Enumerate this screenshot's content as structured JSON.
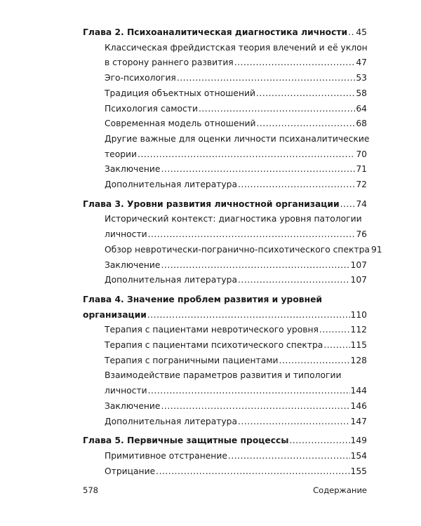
{
  "toc": [
    {
      "type": "chapter",
      "lines": [
        "Глава 2. Психоаналитическая диагностика личности"
      ],
      "page": "45"
    },
    {
      "type": "sub",
      "lines": [
        "Классическая фрейдистская теория влечений и её уклон",
        "в сторону раннего развития"
      ],
      "page": "47"
    },
    {
      "type": "sub",
      "lines": [
        "Эго-психология"
      ],
      "page": "53"
    },
    {
      "type": "sub",
      "lines": [
        "Традиция объектных отношений"
      ],
      "page": "58"
    },
    {
      "type": "sub",
      "lines": [
        "Психология самости"
      ],
      "page": "64"
    },
    {
      "type": "sub",
      "lines": [
        "Современная модель отношений"
      ],
      "page": "68"
    },
    {
      "type": "sub",
      "lines": [
        "Другие важные для оценки личности психаналитические",
        "теории"
      ],
      "page": "70"
    },
    {
      "type": "sub",
      "lines": [
        "Заключение"
      ],
      "page": "71"
    },
    {
      "type": "sub",
      "lines": [
        "Дополнительная литература"
      ],
      "page": "72"
    },
    {
      "type": "chapter",
      "lines": [
        "Глава 3. Уровни развития личностной организации"
      ],
      "page": "74"
    },
    {
      "type": "sub",
      "lines": [
        "Исторический контекст: диагностика уровня патологии",
        "личности"
      ],
      "page": "76"
    },
    {
      "type": "sub",
      "lines": [
        "Обзор невротически-погранично-психотического спектра"
      ],
      "page": "91"
    },
    {
      "type": "sub",
      "lines": [
        "Заключение"
      ],
      "page": "107"
    },
    {
      "type": "sub",
      "lines": [
        "Дополнительная литература"
      ],
      "page": "107"
    },
    {
      "type": "chapter",
      "lines": [
        "Глава 4. Значение проблем развития и уровней",
        "организации"
      ],
      "page": "110"
    },
    {
      "type": "sub",
      "lines": [
        "Терапия с пациентами невротического уровня"
      ],
      "page": "112"
    },
    {
      "type": "sub",
      "lines": [
        "Терапия с пациентами психотического спектра"
      ],
      "page": "115"
    },
    {
      "type": "sub",
      "lines": [
        "Терапия с пограничными пациентами"
      ],
      "page": "128"
    },
    {
      "type": "sub",
      "lines": [
        "Взаимодействие параметров развития и типологии",
        "личности"
      ],
      "page": "144"
    },
    {
      "type": "sub",
      "lines": [
        "Заключение"
      ],
      "page": "146"
    },
    {
      "type": "sub",
      "lines": [
        "Дополнительная литература"
      ],
      "page": "147"
    },
    {
      "type": "chapter",
      "lines": [
        "Глава 5. Первичные защитные процессы"
      ],
      "page": "149"
    },
    {
      "type": "sub",
      "lines": [
        "Примитивное отстранение"
      ],
      "page": "154"
    },
    {
      "type": "sub",
      "lines": [
        "Отрицание"
      ],
      "page": "155"
    }
  ],
  "footer": {
    "page_number": "578",
    "running_title": "Содержание"
  }
}
